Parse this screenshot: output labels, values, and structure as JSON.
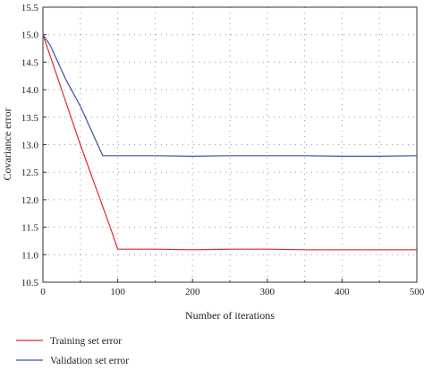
{
  "chart_data": {
    "type": "line",
    "title": "",
    "xlabel": "Number of iterations",
    "ylabel": "Covariance error",
    "xlim": [
      0,
      500
    ],
    "ylim": [
      10.5,
      15.5
    ],
    "x_ticks": [
      0,
      100,
      200,
      300,
      400,
      500
    ],
    "y_ticks": [
      10.5,
      11.0,
      11.5,
      12.0,
      12.5,
      13.0,
      13.5,
      14.0,
      14.5,
      15.0,
      15.5
    ],
    "x_tick_labels": [
      "0",
      "100",
      "200",
      "300",
      "400",
      "500"
    ],
    "y_tick_labels": [
      "10.5",
      "11.0",
      "11.5",
      "12.0",
      "12.5",
      "13.0",
      "13.5",
      "14.0",
      "14.5",
      "15.0",
      "15.5"
    ],
    "grid": true,
    "legend_position": "bottom-left",
    "series": [
      {
        "name": "Training set error",
        "color": "#e8262a",
        "x": [
          0,
          10,
          30,
          50,
          70,
          90,
          100,
          150,
          200,
          250,
          300,
          350,
          400,
          450,
          500
        ],
        "y": [
          15.0,
          14.6,
          13.8,
          13.0,
          12.25,
          11.5,
          11.1,
          11.1,
          11.09,
          11.1,
          11.1,
          11.09,
          11.09,
          11.09,
          11.09
        ]
      },
      {
        "name": "Validation set error",
        "color": "#3b50a6",
        "x": [
          0,
          10,
          30,
          50,
          65,
          80,
          100,
          150,
          200,
          250,
          300,
          350,
          400,
          450,
          500
        ],
        "y": [
          15.0,
          14.8,
          14.2,
          13.7,
          13.25,
          12.8,
          12.8,
          12.8,
          12.79,
          12.8,
          12.8,
          12.8,
          12.79,
          12.79,
          12.8
        ]
      }
    ]
  }
}
